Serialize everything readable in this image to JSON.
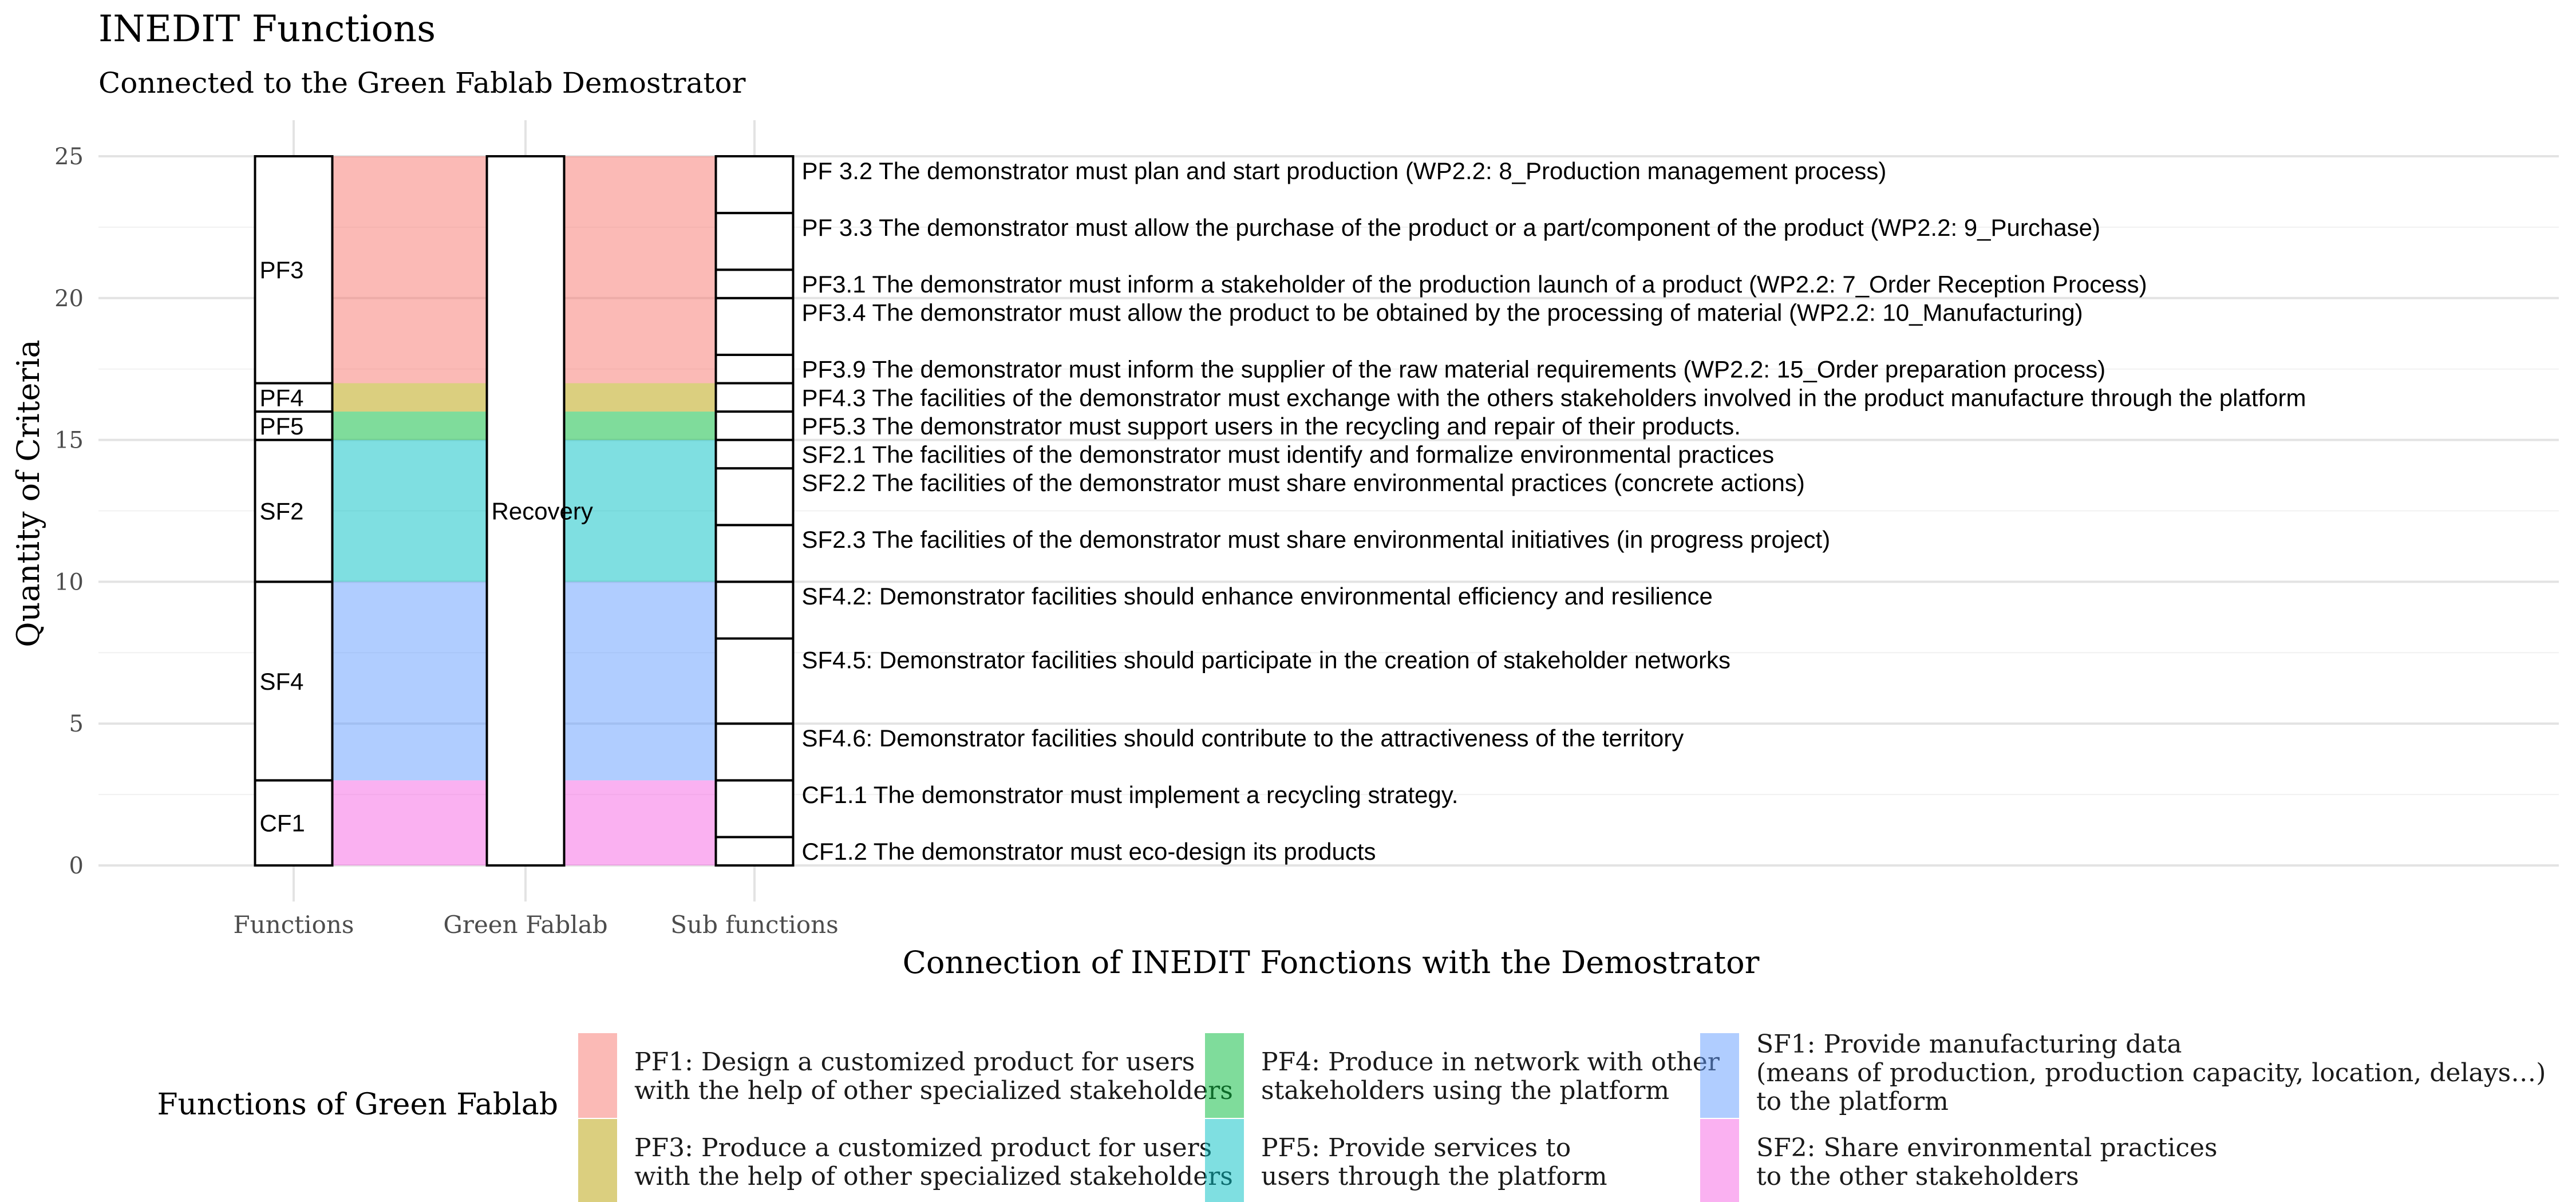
{
  "chart_data": {
    "type": "alluvial",
    "title": "INEDIT Functions",
    "subtitle": "Connected to the Green Fablab Demostrator",
    "xlabel": "Connection of INEDIT Fonctions with the Demostrator",
    "ylabel": "Quantity of Criteria",
    "ylim": [
      0,
      25
    ],
    "y_ticks": [
      0,
      5,
      10,
      15,
      20,
      25
    ],
    "grid": true,
    "axes": [
      "Functions",
      "Green Fablab",
      "Sub functions"
    ],
    "functions_strata": [
      {
        "label": "CF1",
        "from": 0,
        "to": 3
      },
      {
        "label": "SF4",
        "from": 3,
        "to": 10
      },
      {
        "label": "SF2",
        "from": 10,
        "to": 15
      },
      {
        "label": "PF5",
        "from": 15,
        "to": 16
      },
      {
        "label": "PF4",
        "from": 16,
        "to": 17
      },
      {
        "label": "PF3",
        "from": 17,
        "to": 25
      }
    ],
    "green_fablab_strata": [
      {
        "label": "Recovery",
        "from": 0,
        "to": 25
      }
    ],
    "flows": [
      {
        "legend_key": "SF2",
        "from": 0,
        "to": 3
      },
      {
        "legend_key": "SF1",
        "from": 3,
        "to": 10
      },
      {
        "legend_key": "PF5",
        "from": 10,
        "to": 15
      },
      {
        "legend_key": "PF4",
        "from": 15,
        "to": 16
      },
      {
        "legend_key": "PF3",
        "from": 16,
        "to": 17
      },
      {
        "legend_key": "PF1",
        "from": 17,
        "to": 25
      }
    ],
    "sub_functions": [
      {
        "label": "CF1.2 The demonstrator must eco-design its products",
        "from": 0,
        "to": 1
      },
      {
        "label": "CF1.1 The demonstrator must implement a recycling strategy.",
        "from": 1,
        "to": 3
      },
      {
        "label": "SF4.6: Demonstrator facilities should contribute to the attractiveness of the territory",
        "from": 3,
        "to": 5
      },
      {
        "label": "SF4.5: Demonstrator facilities should participate in the creation of stakeholder networks",
        "from": 5,
        "to": 8
      },
      {
        "label": "SF4.2: Demonstrator facilities should enhance environmental efficiency and resilience",
        "from": 8,
        "to": 10
      },
      {
        "label": "SF2.3 The facilities of the demonstrator must share environmental initiatives (in progress project)",
        "from": 10,
        "to": 12
      },
      {
        "label": "SF2.2 The facilities of the demonstrator must share environmental practices (concrete actions)",
        "from": 12,
        "to": 14
      },
      {
        "label": "SF2.1 The facilities of the demonstrator must identify and formalize environmental practices",
        "from": 14,
        "to": 15
      },
      {
        "label": "PF5.3 The demonstrator must support users in the recycling and repair of their products.",
        "from": 15,
        "to": 16
      },
      {
        "label": "PF4.3 The facilities of the demonstrator must exchange with the others stakeholders involved in the product manufacture through the platform",
        "from": 16,
        "to": 17
      },
      {
        "label": "PF3.9 The demonstrator must inform the supplier of the raw material requirements (WP2.2: 15_Order preparation process)",
        "from": 17,
        "to": 18
      },
      {
        "label": "PF3.4 The demonstrator must allow the product to be obtained by the processing of material (WP2.2: 10_Manufacturing)",
        "from": 18,
        "to": 20
      },
      {
        "label": "PF3.1 The demonstrator must inform a stakeholder of the production launch of a product (WP2.2: 7_Order Reception Process)",
        "from": 20,
        "to": 21
      },
      {
        "label": "PF 3.3 The demonstrator must allow the purchase of the product or a part/component of the product (WP2.2: 9_Purchase)",
        "from": 21,
        "to": 23
      },
      {
        "label": "PF 3.2 The demonstrator must plan and start production (WP2.2: 8_Production management process)",
        "from": 23,
        "to": 25
      }
    ],
    "legend": {
      "title": "Functions of Green Fablab",
      "position": "bottom",
      "entries": [
        {
          "key": "PF1",
          "lines": [
            "PF1: Design a customized product for users",
            "with the help of other specialized stakeholders"
          ],
          "color": "#F8766D"
        },
        {
          "key": "PF3",
          "lines": [
            "PF3: Produce a customized product for users",
            "with the help of other specialized stakeholders"
          ],
          "color": "#B79F00"
        },
        {
          "key": "PF4",
          "lines": [
            "PF4: Produce in network with other",
            "stakeholders using the platform"
          ],
          "color": "#00BA38"
        },
        {
          "key": "PF5",
          "lines": [
            "PF5: Provide services to",
            "users through the platform"
          ],
          "color": "#00BFC4"
        },
        {
          "key": "SF1",
          "lines": [
            "SF1: Provide manufacturing data",
            "(means of production, production capacity, location, delays…)",
            "to the platform"
          ],
          "color": "#619CFF"
        },
        {
          "key": "SF2",
          "lines": [
            "SF2: Share environmental practices",
            "to the other stakeholders"
          ],
          "color": "#F564E3"
        }
      ]
    }
  }
}
